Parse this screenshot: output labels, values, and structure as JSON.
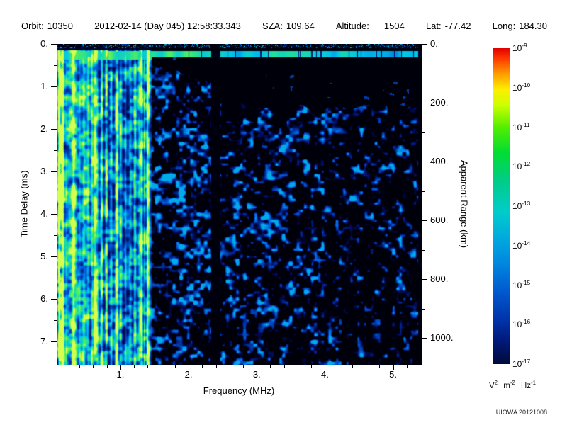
{
  "header": {
    "items": [
      {
        "label": "Orbit:",
        "value": "10350"
      },
      {
        "label": "",
        "value": "2012-02-14 (Day 045) 12:58:33.343"
      },
      {
        "label": "SZA:",
        "value": "109.64"
      },
      {
        "label": "Altitude:",
        "value": "1504"
      },
      {
        "label": "Lat:",
        "value": "-77.42"
      },
      {
        "label": "Long:",
        "value": "184.30"
      }
    ]
  },
  "chart_data": {
    "type": "heatmap",
    "subtype": "radar-sounder-ionogram-spectrogram",
    "background_color": "#000000",
    "x_axis": {
      "label": "Frequency (MHz)",
      "min": 0.065,
      "max": 5.42,
      "ticks": [
        "1.",
        "2.",
        "3.",
        "4.",
        "5."
      ],
      "tick_values": [
        1,
        2,
        3,
        4,
        5
      ]
    },
    "y_axis_left": {
      "label": "Time Delay (ms)",
      "min": 0.0,
      "max": 7.55,
      "direction": "increasing downward",
      "ticks": [
        "0.",
        "1.",
        "2.",
        "3.",
        "4.",
        "5.",
        "6.",
        "7."
      ],
      "tick_values": [
        0,
        1,
        2,
        3,
        4,
        5,
        6,
        7
      ]
    },
    "y_axis_right": {
      "label": "Apparent Range (km)",
      "ticks": [
        "0.",
        "200.",
        "400.",
        "600.",
        "800.",
        "1000."
      ],
      "tick_values": [
        0,
        200,
        400,
        600,
        800,
        1000
      ]
    },
    "colorbar": {
      "scale": "log",
      "quantity_max": 1e-09,
      "quantity_min": 1e-17,
      "base": "10",
      "exponents": [
        "-9",
        "-10",
        "-11",
        "-12",
        "-13",
        "-14",
        "-15",
        "-16",
        "-17"
      ],
      "unit": {
        "v": "V",
        "v_exp": "2",
        "m": "m",
        "m_exp": "-2",
        "hz": "Hz",
        "hz_exp": "-1"
      },
      "gradient_stops": [
        "#e00000",
        "#ff9900",
        "#ffee00",
        "#55ee00",
        "#00cc66",
        "#00cccc",
        "#0099dd",
        "#0044bb",
        "#001877",
        "#000a3a"
      ]
    },
    "features": {
      "surface_echo": {
        "delay_ms": 0.22,
        "thickness_ms": 0.16
      },
      "ionosphere_max_freq_mhz": 1.45,
      "streaks_mhz": [
        0.09,
        0.12,
        0.16,
        0.2,
        0.24,
        0.29,
        0.34,
        0.4,
        0.46,
        0.52,
        0.58,
        0.65,
        0.72,
        0.79,
        0.86,
        0.93,
        1.0,
        1.07,
        1.14,
        1.21,
        1.28,
        1.35,
        1.41
      ],
      "bright_streaks_mhz": [
        0.1,
        0.14,
        0.31,
        0.62,
        0.95,
        1.31,
        1.39
      ],
      "interference_null_mhz": [
        2.33,
        2.46
      ],
      "echo_onset_ms": {
        "at_1_5_mhz": 0.5,
        "at_3_mhz": 1.5,
        "max": 1.55
      },
      "noise_seed": 20120214
    }
  },
  "credit": "UIOWA 20121008"
}
